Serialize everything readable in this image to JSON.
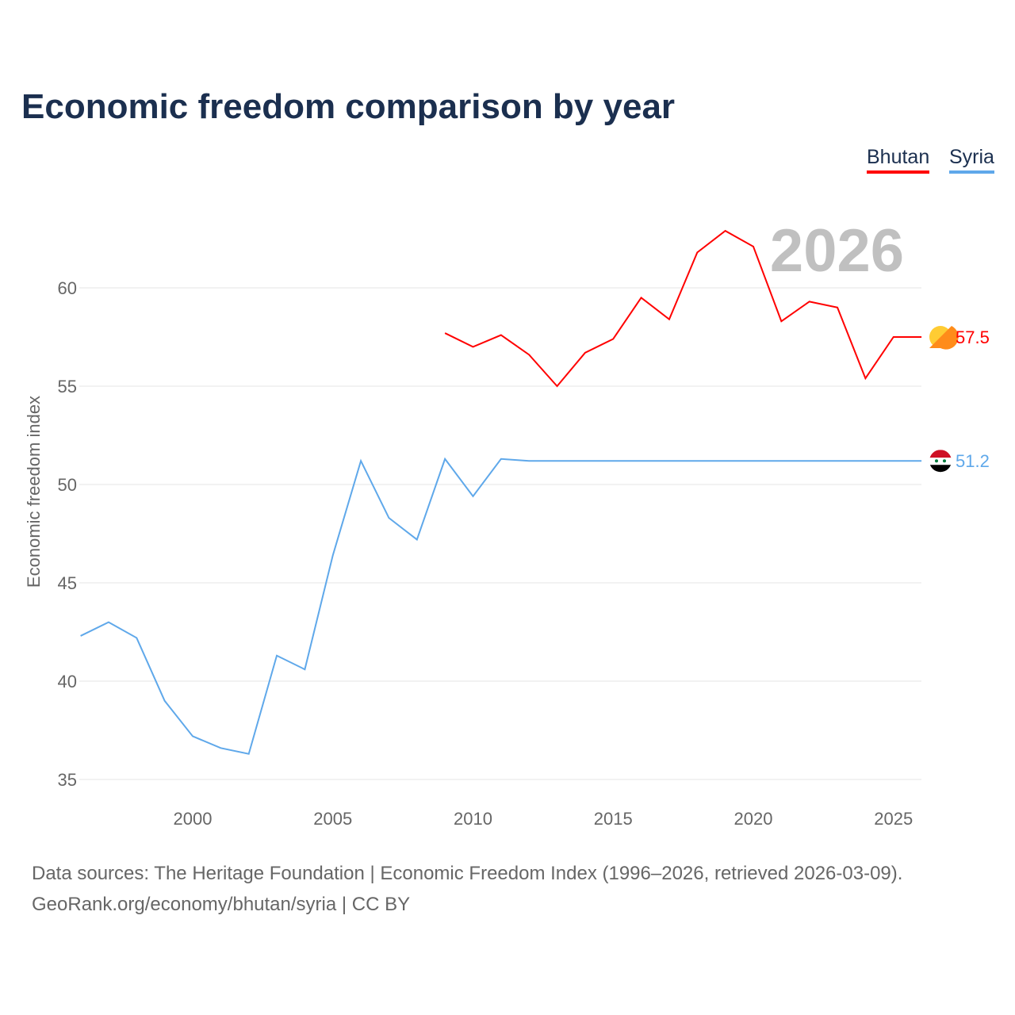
{
  "title": "Economic freedom comparison by year",
  "legend": [
    {
      "label": "Bhutan",
      "color": "#ff0000"
    },
    {
      "label": "Syria",
      "color": "#5fa8ea"
    }
  ],
  "footer": {
    "line1": "Data sources: The Heritage Foundation | Economic Freedom Index (1996–2026, retrieved 2026-03-09).",
    "line2": "GeoRank.org/economy/bhutan/syria | CC BY"
  },
  "chart_data": {
    "type": "line",
    "title": "Economic freedom comparison by year",
    "ylabel": "Economic freedom index",
    "xlabel": "",
    "xlim": [
      1996,
      2026
    ],
    "ylim": [
      34,
      64
    ],
    "xticks": [
      2000,
      2005,
      2010,
      2015,
      2020,
      2025
    ],
    "yticks": [
      35,
      40,
      45,
      50,
      55,
      60
    ],
    "watermark_year": "2026",
    "grid": true,
    "legend_position": "top-right",
    "series": [
      {
        "name": "Bhutan",
        "color": "#ff0000",
        "end_label": "57.5",
        "x": [
          2009,
          2010,
          2011,
          2012,
          2013,
          2014,
          2015,
          2016,
          2017,
          2018,
          2019,
          2020,
          2021,
          2022,
          2023,
          2024,
          2025,
          2026
        ],
        "y": [
          57.7,
          57.0,
          57.6,
          56.6,
          55.0,
          56.7,
          57.4,
          59.5,
          58.4,
          61.8,
          62.9,
          62.1,
          58.3,
          59.3,
          59.0,
          55.4,
          57.5,
          57.5
        ]
      },
      {
        "name": "Syria",
        "color": "#5fa8ea",
        "end_label": "51.2",
        "x": [
          1996,
          1997,
          1998,
          1999,
          2000,
          2001,
          2002,
          2003,
          2004,
          2005,
          2006,
          2007,
          2008,
          2009,
          2010,
          2011,
          2012,
          2026
        ],
        "y": [
          42.3,
          43.0,
          42.2,
          39.0,
          37.2,
          36.6,
          36.3,
          41.3,
          40.6,
          46.4,
          51.2,
          48.3,
          47.2,
          51.3,
          49.4,
          51.3,
          51.2,
          51.2
        ]
      }
    ]
  }
}
